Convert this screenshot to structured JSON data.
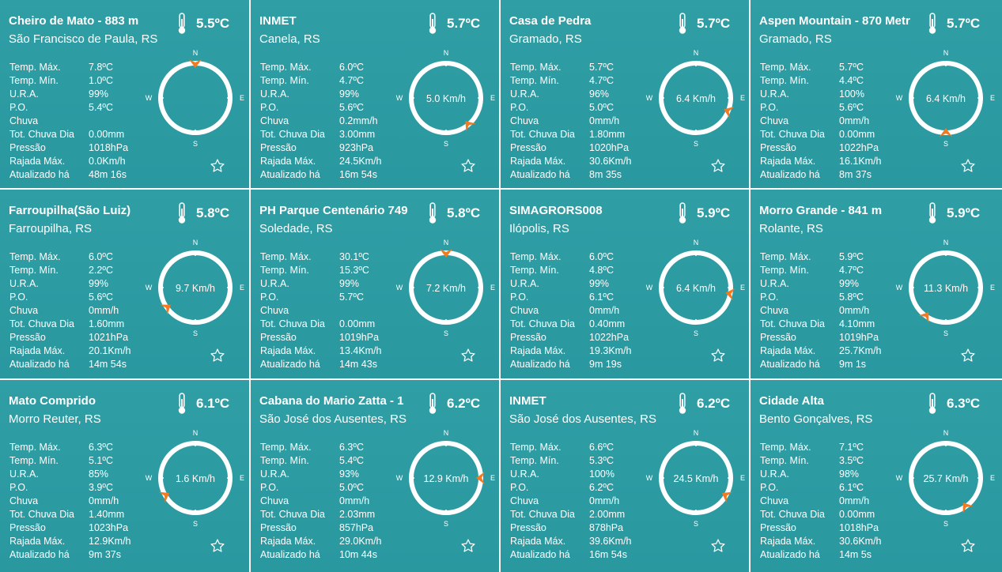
{
  "labels": {
    "temp_max": "Temp. Máx.",
    "temp_min": "Temp. Mín.",
    "humidity": "U.R.A.",
    "dew_point": "P.O.",
    "rain": "Chuva",
    "rain_day": "Tot. Chuva Dia",
    "pressure": "Pressão",
    "gust": "Rajada Máx.",
    "updated": "Atualizado há"
  },
  "compass_letters": {
    "n": "N",
    "e": "E",
    "s": "S",
    "w": "W"
  },
  "icons": {
    "thermometer": "thermometer-icon",
    "star": "star-outline-icon",
    "arrow": "wind-direction-arrow-icon"
  },
  "colors": {
    "card_bg": "#2f9ea5",
    "text": "#ffffff",
    "wind_arrow": "#f27a21"
  },
  "stations": [
    {
      "name": "Cheiro de Mato - 883 m",
      "city": "São Francisco de Paula, RS",
      "temp": "5.5ºC",
      "temp_max": "7.8ºC",
      "temp_min": "1.0ºC",
      "humidity": "99%",
      "dew_point": "5.4ºC",
      "rain": "",
      "rain_day": "0.00mm",
      "pressure": "1018hPa",
      "gust": "0.0Km/h",
      "updated": "48m 16s",
      "wind_speed": "",
      "wind_dir_deg": 0
    },
    {
      "name": "INMET",
      "city": "Canela, RS",
      "temp": "5.7ºC",
      "temp_max": "6.0ºC",
      "temp_min": "4.7ºC",
      "humidity": "99%",
      "dew_point": "5.6ºC",
      "rain": "0.2mm/h",
      "rain_day": "3.00mm",
      "pressure": "923hPa",
      "gust": "24.5Km/h",
      "updated": "16m 54s",
      "wind_speed": "5.0 Km/h",
      "wind_dir_deg": 140
    },
    {
      "name": "Casa de Pedra",
      "city": "Gramado, RS",
      "temp": "5.7ºC",
      "temp_max": "5.7ºC",
      "temp_min": "4.7ºC",
      "humidity": "96%",
      "dew_point": "5.0ºC",
      "rain": "0mm/h",
      "rain_day": "1.80mm",
      "pressure": "1020hPa",
      "gust": "30.6Km/h",
      "updated": "8m 35s",
      "wind_speed": "6.4 Km/h",
      "wind_dir_deg": 112
    },
    {
      "name": "Aspen Mountain - 870 Metr",
      "city": "Gramado, RS",
      "temp": "5.7ºC",
      "temp_max": "5.7ºC",
      "temp_min": "4.4ºC",
      "humidity": "100%",
      "dew_point": "5.6ºC",
      "rain": "0mm/h",
      "rain_day": "0.00mm",
      "pressure": "1022hPa",
      "gust": "16.1Km/h",
      "updated": "8m 37s",
      "wind_speed": "6.4 Km/h",
      "wind_dir_deg": 180
    },
    {
      "name": "Farroupilha(São Luiz)",
      "city": "Farroupilha, RS",
      "temp": "5.8ºC",
      "temp_max": "6.0ºC",
      "temp_min": "2.2ºC",
      "humidity": "99%",
      "dew_point": "5.6ºC",
      "rain": "0mm/h",
      "rain_day": "1.60mm",
      "pressure": "1021hPa",
      "gust": "20.1Km/h",
      "updated": "14m 54s",
      "wind_speed": "9.7 Km/h",
      "wind_dir_deg": 235
    },
    {
      "name": "PH Parque Centenário 749",
      "city": "Soledade, RS",
      "temp": "5.8ºC",
      "temp_max": "30.1ºC",
      "temp_min": "15.3ºC",
      "humidity": "99%",
      "dew_point": "5.7ºC",
      "rain": "",
      "rain_day": "0.00mm",
      "pressure": "1019hPa",
      "gust": "13.4Km/h",
      "updated": "14m 43s",
      "wind_speed": "7.2 Km/h",
      "wind_dir_deg": 0
    },
    {
      "name": "SIMAGRORS008",
      "city": "Ilópolis, RS",
      "temp": "5.9ºC",
      "temp_max": "6.0ºC",
      "temp_min": "4.8ºC",
      "humidity": "99%",
      "dew_point": "6.1ºC",
      "rain": "0mm/h",
      "rain_day": "0.40mm",
      "pressure": "1022hPa",
      "gust": "19.3Km/h",
      "updated": "9m 19s",
      "wind_speed": "6.4 Km/h",
      "wind_dir_deg": 100
    },
    {
      "name": "Morro Grande - 841 m",
      "city": "Rolante, RS",
      "temp": "5.9ºC",
      "temp_max": "5.9ºC",
      "temp_min": "4.7ºC",
      "humidity": "99%",
      "dew_point": "5.8ºC",
      "rain": "0mm/h",
      "rain_day": "4.10mm",
      "pressure": "1019hPa",
      "gust": "25.7Km/h",
      "updated": "9m 1s",
      "wind_speed": "11.3 Km/h",
      "wind_dir_deg": 215
    },
    {
      "name": "Mato Comprido",
      "city": "Morro Reuter, RS",
      "temp": "6.1ºC",
      "temp_max": "6.3ºC",
      "temp_min": "5.1ºC",
      "humidity": "85%",
      "dew_point": "3.9ºC",
      "rain": "0mm/h",
      "rain_day": "1.40mm",
      "pressure": "1023hPa",
      "gust": "12.9Km/h",
      "updated": "9m 37s",
      "wind_speed": "1.6 Km/h",
      "wind_dir_deg": 240
    },
    {
      "name": "Cabana do Mario Zatta - 1",
      "city": "São José dos Ausentes, RS",
      "temp": "6.2ºC",
      "temp_max": "6.3ºC",
      "temp_min": "5.4ºC",
      "humidity": "93%",
      "dew_point": "5.0ºC",
      "rain": "0mm/h",
      "rain_day": "2.03mm",
      "pressure": "857hPa",
      "gust": "29.0Km/h",
      "updated": "10m 44s",
      "wind_speed": "12.9 Km/h",
      "wind_dir_deg": 90
    },
    {
      "name": "INMET",
      "city": "São José dos Ausentes, RS",
      "temp": "6.2ºC",
      "temp_max": "6.6ºC",
      "temp_min": "5.3ºC",
      "humidity": "100%",
      "dew_point": "6.2ºC",
      "rain": "0mm/h",
      "rain_day": "2.00mm",
      "pressure": "878hPa",
      "gust": "39.6Km/h",
      "updated": "16m 54s",
      "wind_speed": "24.5 Km/h",
      "wind_dir_deg": 120
    },
    {
      "name": "Cidade Alta",
      "city": "Bento Gonçalves, RS",
      "temp": "6.3ºC",
      "temp_max": "7.1ºC",
      "temp_min": "3.5ºC",
      "humidity": "98%",
      "dew_point": "6.1ºC",
      "rain": "0mm/h",
      "rain_day": "0.00mm",
      "pressure": "1018hPa",
      "gust": "30.6Km/h",
      "updated": "14m 5s",
      "wind_speed": "25.7 Km/h",
      "wind_dir_deg": 145
    }
  ]
}
